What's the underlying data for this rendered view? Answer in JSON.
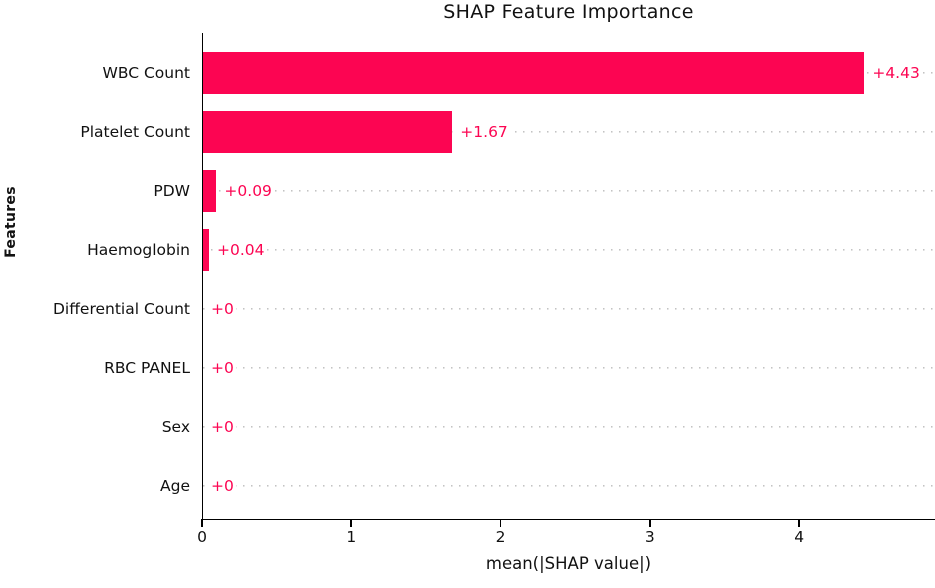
{
  "chart_data": {
    "type": "bar",
    "orientation": "horizontal",
    "title": "SHAP Feature Importance",
    "xlabel": "mean(|SHAP value|)",
    "ylabel": "Features",
    "categories": [
      "WBC Count",
      "Platelet Count",
      "PDW",
      "Haemoglobin",
      "Differential Count",
      "RBC PANEL",
      "Sex",
      "Age"
    ],
    "values": [
      4.43,
      1.67,
      0.09,
      0.04,
      0,
      0,
      0,
      0
    ],
    "value_labels": [
      "+4.43",
      "+1.67",
      "+0.09",
      "+0.04",
      "+0",
      "+0",
      "+0",
      "+0"
    ],
    "xticks": [
      "0",
      "1",
      "2",
      "3",
      "4"
    ],
    "xtick_values": [
      0,
      1,
      2,
      3,
      4
    ],
    "xlim": [
      0,
      4.91
    ],
    "grid": "horizontal-dotted",
    "legend": "none",
    "colors": {
      "bar": "#fc0552",
      "value_label": "#fc0552",
      "gridline": "#c3c3c3",
      "axis": "#000000",
      "text": "#111111"
    }
  }
}
